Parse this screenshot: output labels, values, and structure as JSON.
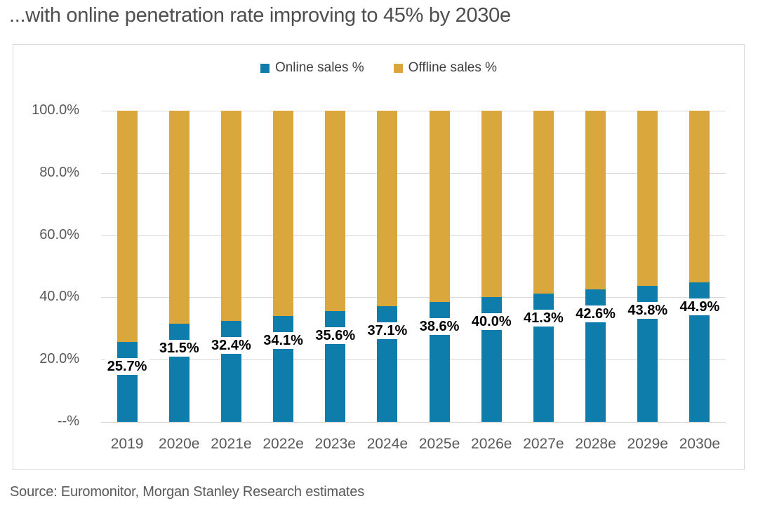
{
  "title": "...with online penetration rate improving to 45% by 2030e",
  "source": "Source: Euromonitor, Morgan Stanley Research estimates",
  "colors": {
    "online_blue": "#0f7dab",
    "offline_gold": "#d9a73c",
    "grid_gray": "#d9d9d9",
    "text_gray": "#595959"
  },
  "chart_data": {
    "type": "bar",
    "stacked": true,
    "title": "...with online penetration rate improving to 45% by 2030e",
    "categories": [
      "2019",
      "2020e",
      "2021e",
      "2022e",
      "2023e",
      "2024e",
      "2025e",
      "2026e",
      "2027e",
      "2028e",
      "2029e",
      "2030e"
    ],
    "series": [
      {
        "name": "Online sales %",
        "color": "#0f7dab",
        "values": [
          25.7,
          31.5,
          32.4,
          34.1,
          35.6,
          37.1,
          38.6,
          40.0,
          41.3,
          42.6,
          43.8,
          44.9
        ]
      },
      {
        "name": "Offline sales %",
        "color": "#d9a73c",
        "values": [
          74.3,
          68.5,
          67.6,
          65.9,
          64.4,
          62.9,
          61.4,
          60.0,
          58.7,
          57.4,
          56.2,
          55.1
        ]
      }
    ],
    "data_labels": [
      "25.7%",
      "31.5%",
      "32.4%",
      "34.1%",
      "35.6%",
      "37.1%",
      "38.6%",
      "40.0%",
      "41.3%",
      "42.6%",
      "43.8%",
      "44.9%"
    ],
    "data_label_series": "Online sales %",
    "y_ticks": [
      "100.0%",
      "80.0%",
      "60.0%",
      "40.0%",
      "20.0%",
      "--%"
    ],
    "ylim": [
      0,
      100
    ],
    "xlabel": "",
    "ylabel": "",
    "grid": true,
    "legend_position": "top"
  }
}
